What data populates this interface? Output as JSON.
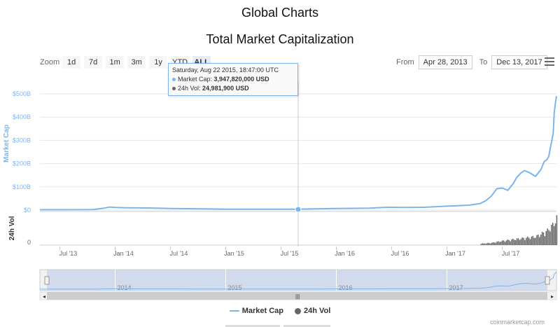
{
  "page_title": "Global Charts",
  "chart_title": "Total Market Capitalization",
  "zoom": {
    "label": "Zoom",
    "buttons": [
      "1d",
      "7d",
      "1m",
      "3m",
      "1y",
      "YTD",
      "ALL"
    ],
    "active": "ALL"
  },
  "range": {
    "from_label": "From",
    "from_value": "Apr 28, 2013",
    "to_label": "To",
    "to_value": "Dec 13, 2017"
  },
  "tooltip": {
    "date": "Saturday, Aug 22 2015, 18:47:00 UTC",
    "market_cap_label": "Market Cap:",
    "market_cap_value": "3,947,820,000 USD",
    "vol_label": "24h Vol:",
    "vol_value": "24,981,900 USD"
  },
  "legend": {
    "market_cap": "Market Cap",
    "vol": "24h Vol"
  },
  "credit": "coinmarketcap.com",
  "colors": {
    "market_cap": "#7cb5ec",
    "volume": "#666666",
    "navigator_fill": "#c9d4ea"
  },
  "chart_data": {
    "type": "line",
    "title": "Total Market Capitalization",
    "y_axis": {
      "label": "Market Cap",
      "ticks": [
        "$0",
        "$100B",
        "$200B",
        "$300B",
        "$400B",
        "$500B"
      ],
      "range": [
        0,
        500
      ]
    },
    "vol_axis": {
      "label": "24h Vol",
      "ticks": [
        "0"
      ]
    },
    "x_axis": {
      "ticks": [
        "Jul '13",
        "Jan '14",
        "Jul '14",
        "Jan '15",
        "Jul '15",
        "Jan '16",
        "Jul '16",
        "Jan '17",
        "Jul '17"
      ]
    },
    "navigator_labels": [
      "2014",
      "2015",
      "2016",
      "2017"
    ],
    "series": [
      {
        "name": "Market Cap",
        "unit": "USD billions",
        "x": [
          2013.32,
          2013.5,
          2013.8,
          2013.9,
          2013.95,
          2014.0,
          2014.1,
          2014.3,
          2014.5,
          2014.8,
          2015.0,
          2015.3,
          2015.64,
          2015.8,
          2016.0,
          2016.3,
          2016.46,
          2016.6,
          2016.8,
          2017.0,
          2017.1,
          2017.2,
          2017.3,
          2017.35,
          2017.4,
          2017.45,
          2017.5,
          2017.55,
          2017.6,
          2017.63,
          2017.67,
          2017.7,
          2017.75,
          2017.8,
          2017.85,
          2017.88,
          2017.9,
          2017.92,
          2017.94,
          2017.96,
          2017.97,
          2017.98,
          2017.99
        ],
        "values": [
          1.5,
          1.5,
          2,
          8,
          13,
          11,
          10,
          9,
          7,
          5,
          4,
          4,
          3.9,
          5,
          7,
          8,
          12,
          11,
          12,
          17,
          19,
          21,
          28,
          40,
          60,
          92,
          95,
          85,
          115,
          140,
          160,
          170,
          160,
          145,
          175,
          210,
          215,
          230,
          280,
          330,
          420,
          460,
          490
        ]
      },
      {
        "name": "24h Vol",
        "note": "volume bars, relative scale",
        "x": [
          2017.3,
          2017.4,
          2017.5,
          2017.6,
          2017.7,
          2017.8,
          2017.9,
          2017.95,
          2017.99
        ],
        "values": [
          0.05,
          0.08,
          0.15,
          0.2,
          0.25,
          0.3,
          0.5,
          0.7,
          0.95
        ]
      }
    ],
    "grid": true,
    "legend_position": "bottom"
  }
}
